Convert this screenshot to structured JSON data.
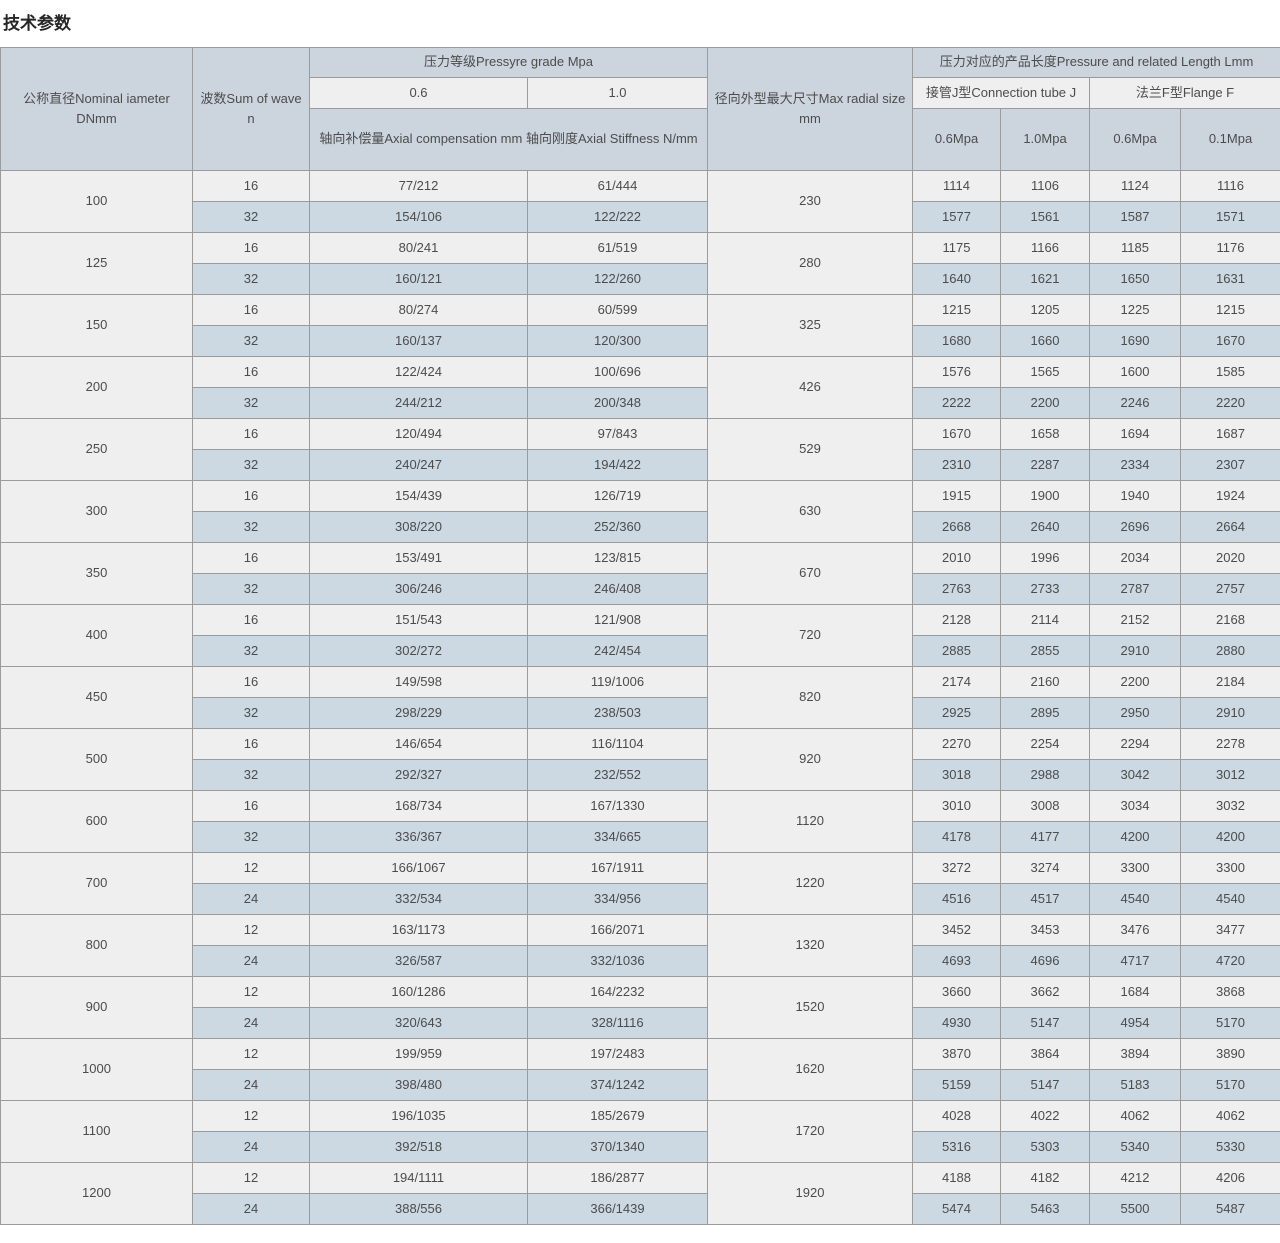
{
  "page": {
    "title": "技术参数"
  },
  "colors": {
    "header_bg": "#ccd5de",
    "subheader_bg": "#efefef",
    "row_light_bg": "#efefef",
    "row_blue_bg": "#ccd9e2",
    "border": "#9b9b9b",
    "text": "#4c4c4c",
    "title_text": "#262626"
  },
  "table": {
    "header": {
      "nominal_diameter": "公称直径Nominal iameter DNmm",
      "wave_count": "波数Sum of wave n",
      "pressure_grade": "压力等级Pressyre grade Mpa",
      "grade_06": "0.6",
      "grade_10": "1.0",
      "axial": "轴向补偿量Axial compensation mm 轴向刚度Axial Stiffness N/mm",
      "radial": "径向外型最大尺寸Max radial size mm",
      "length": "压力对应的产品长度Pressure and related Length Lmm",
      "connection_tube": "接管J型Connection tube J",
      "flange": "法兰F型Flange F",
      "tube_06": "0.6Mpa",
      "tube_10": "1.0Mpa",
      "flange_06": "0.6Mpa",
      "flange_01": "0.1Mpa"
    },
    "groups": [
      {
        "dn": "100",
        "radial": "230",
        "rows": [
          {
            "n": "16",
            "c06": "77/212",
            "c10": "61/444",
            "j06": "1114",
            "j10": "1106",
            "f06": "1124",
            "f01": "1116"
          },
          {
            "n": "32",
            "c06": "154/106",
            "c10": "122/222",
            "j06": "1577",
            "j10": "1561",
            "f06": "1587",
            "f01": "1571"
          }
        ]
      },
      {
        "dn": "125",
        "radial": "280",
        "rows": [
          {
            "n": "16",
            "c06": "80/241",
            "c10": "61/519",
            "j06": "1175",
            "j10": "1166",
            "f06": "1185",
            "f01": "1176"
          },
          {
            "n": "32",
            "c06": "160/121",
            "c10": "122/260",
            "j06": "1640",
            "j10": "1621",
            "f06": "1650",
            "f01": "1631"
          }
        ]
      },
      {
        "dn": "150",
        "radial": "325",
        "rows": [
          {
            "n": "16",
            "c06": "80/274",
            "c10": "60/599",
            "j06": "1215",
            "j10": "1205",
            "f06": "1225",
            "f01": "1215"
          },
          {
            "n": "32",
            "c06": "160/137",
            "c10": "120/300",
            "j06": "1680",
            "j10": "1660",
            "f06": "1690",
            "f01": "1670"
          }
        ]
      },
      {
        "dn": "200",
        "radial": "426",
        "rows": [
          {
            "n": "16",
            "c06": "122/424",
            "c10": "100/696",
            "j06": "1576",
            "j10": "1565",
            "f06": "1600",
            "f01": "1585"
          },
          {
            "n": "32",
            "c06": "244/212",
            "c10": "200/348",
            "j06": "2222",
            "j10": "2200",
            "f06": "2246",
            "f01": "2220"
          }
        ]
      },
      {
        "dn": "250",
        "radial": "529",
        "rows": [
          {
            "n": "16",
            "c06": "120/494",
            "c10": "97/843",
            "j06": "1670",
            "j10": "1658",
            "f06": "1694",
            "f01": "1687"
          },
          {
            "n": "32",
            "c06": "240/247",
            "c10": "194/422",
            "j06": "2310",
            "j10": "2287",
            "f06": "2334",
            "f01": "2307"
          }
        ]
      },
      {
        "dn": "300",
        "radial": "630",
        "rows": [
          {
            "n": "16",
            "c06": "154/439",
            "c10": "126/719",
            "j06": "1915",
            "j10": "1900",
            "f06": "1940",
            "f01": "1924"
          },
          {
            "n": "32",
            "c06": "308/220",
            "c10": "252/360",
            "j06": "2668",
            "j10": "2640",
            "f06": "2696",
            "f01": "2664"
          }
        ]
      },
      {
        "dn": "350",
        "radial": "670",
        "rows": [
          {
            "n": "16",
            "c06": "153/491",
            "c10": "123/815",
            "j06": "2010",
            "j10": "1996",
            "f06": "2034",
            "f01": "2020"
          },
          {
            "n": "32",
            "c06": "306/246",
            "c10": "246/408",
            "j06": "2763",
            "j10": "2733",
            "f06": "2787",
            "f01": "2757"
          }
        ]
      },
      {
        "dn": "400",
        "radial": "720",
        "rows": [
          {
            "n": "16",
            "c06": "151/543",
            "c10": "121/908",
            "j06": "2128",
            "j10": "2114",
            "f06": "2152",
            "f01": "2168"
          },
          {
            "n": "32",
            "c06": "302/272",
            "c10": "242/454",
            "j06": "2885",
            "j10": "2855",
            "f06": "2910",
            "f01": "2880"
          }
        ]
      },
      {
        "dn": "450",
        "radial": "820",
        "rows": [
          {
            "n": "16",
            "c06": "149/598",
            "c10": "119/1006",
            "j06": "2174",
            "j10": "2160",
            "f06": "2200",
            "f01": "2184"
          },
          {
            "n": "32",
            "c06": "298/229",
            "c10": "238/503",
            "j06": "2925",
            "j10": "2895",
            "f06": "2950",
            "f01": "2910"
          }
        ]
      },
      {
        "dn": "500",
        "radial": "920",
        "rows": [
          {
            "n": "16",
            "c06": "146/654",
            "c10": "116/1104",
            "j06": "2270",
            "j10": "2254",
            "f06": "2294",
            "f01": "2278"
          },
          {
            "n": "32",
            "c06": "292/327",
            "c10": "232/552",
            "j06": "3018",
            "j10": "2988",
            "f06": "3042",
            "f01": "3012"
          }
        ]
      },
      {
        "dn": "600",
        "radial": "1120",
        "rows": [
          {
            "n": "16",
            "c06": "168/734",
            "c10": "167/1330",
            "j06": "3010",
            "j10": "3008",
            "f06": "3034",
            "f01": "3032"
          },
          {
            "n": "32",
            "c06": "336/367",
            "c10": "334/665",
            "j06": "4178",
            "j10": "4177",
            "f06": "4200",
            "f01": "4200"
          }
        ]
      },
      {
        "dn": "700",
        "radial": "1220",
        "rows": [
          {
            "n": "12",
            "c06": "166/1067",
            "c10": "167/1911",
            "j06": "3272",
            "j10": "3274",
            "f06": "3300",
            "f01": "3300"
          },
          {
            "n": "24",
            "c06": "332/534",
            "c10": "334/956",
            "j06": "4516",
            "j10": "4517",
            "f06": "4540",
            "f01": "4540"
          }
        ]
      },
      {
        "dn": "800",
        "radial": "1320",
        "rows": [
          {
            "n": "12",
            "c06": "163/1173",
            "c10": "166/2071",
            "j06": "3452",
            "j10": "3453",
            "f06": "3476",
            "f01": "3477"
          },
          {
            "n": "24",
            "c06": "326/587",
            "c10": "332/1036",
            "j06": "4693",
            "j10": "4696",
            "f06": "4717",
            "f01": "4720"
          }
        ]
      },
      {
        "dn": "900",
        "radial": "1520",
        "rows": [
          {
            "n": "12",
            "c06": "160/1286",
            "c10": "164/2232",
            "j06": "3660",
            "j10": "3662",
            "f06": "1684",
            "f01": "3868"
          },
          {
            "n": "24",
            "c06": "320/643",
            "c10": "328/1116",
            "j06": "4930",
            "j10": "5147",
            "f06": "4954",
            "f01": "5170"
          }
        ]
      },
      {
        "dn": "1000",
        "radial": "1620",
        "rows": [
          {
            "n": "12",
            "c06": "199/959",
            "c10": "197/2483",
            "j06": "3870",
            "j10": "3864",
            "f06": "3894",
            "f01": "3890"
          },
          {
            "n": "24",
            "c06": "398/480",
            "c10": "374/1242",
            "j06": "5159",
            "j10": "5147",
            "f06": "5183",
            "f01": "5170"
          }
        ]
      },
      {
        "dn": "1100",
        "radial": "1720",
        "rows": [
          {
            "n": "12",
            "c06": "196/1035",
            "c10": "185/2679",
            "j06": "4028",
            "j10": "4022",
            "f06": "4062",
            "f01": "4062"
          },
          {
            "n": "24",
            "c06": "392/518",
            "c10": "370/1340",
            "j06": "5316",
            "j10": "5303",
            "f06": "5340",
            "f01": "5330"
          }
        ]
      },
      {
        "dn": "1200",
        "radial": "1920",
        "rows": [
          {
            "n": "12",
            "c06": "194/1111",
            "c10": "186/2877",
            "j06": "4188",
            "j10": "4182",
            "f06": "4212",
            "f01": "4206"
          },
          {
            "n": "24",
            "c06": "388/556",
            "c10": "366/1439",
            "j06": "5474",
            "j10": "5463",
            "f06": "5500",
            "f01": "5487"
          }
        ]
      }
    ]
  }
}
